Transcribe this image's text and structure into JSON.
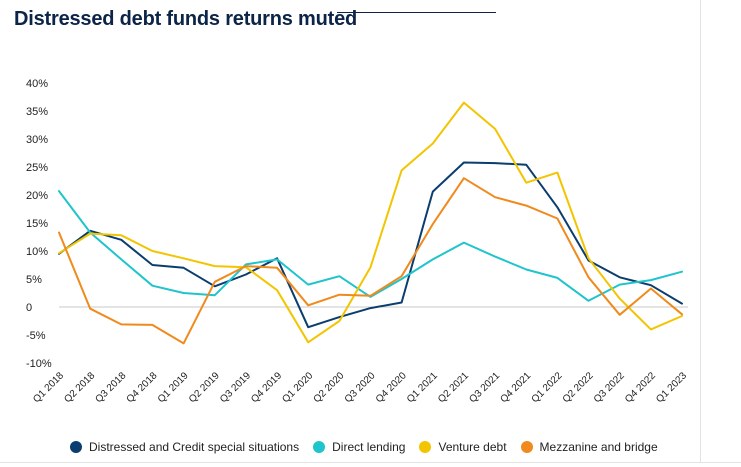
{
  "title": "Distressed debt funds returns muted",
  "chart_data": {
    "type": "line",
    "title": "Distressed debt funds returns muted",
    "xlabel": "",
    "ylabel": "",
    "ylim": [
      -10,
      40
    ],
    "yticks": [
      40,
      35,
      30,
      25,
      20,
      15,
      10,
      5,
      0,
      -5,
      -10
    ],
    "ytick_labels": [
      "40%",
      "35%",
      "30%",
      "25%",
      "20%",
      "15%",
      "10%",
      "5%",
      "0",
      "-5%",
      "-10%"
    ],
    "categories": [
      "Q1 2018",
      "Q2 2018",
      "Q3 2018",
      "Q4 2018",
      "Q1 2019",
      "Q2 2019",
      "Q3 2019",
      "Q4 2019",
      "Q1 2020",
      "Q2 2020",
      "Q3 2020",
      "Q4 2020",
      "Q1 2021",
      "Q2 2021",
      "Q3 2021",
      "Q4 2021",
      "Q1 2022",
      "Q2 2022",
      "Q3 2022",
      "Q4 2022",
      "Q1 2023"
    ],
    "series": [
      {
        "name": "Distressed and Credit special situations",
        "color": "#0b3d6e",
        "values": [
          9.5,
          13.6,
          12.0,
          7.5,
          7.0,
          3.7,
          5.8,
          8.7,
          -3.6,
          -1.8,
          -0.2,
          0.8,
          20.6,
          25.8,
          25.7,
          25.4,
          17.8,
          8.3,
          5.3,
          3.9,
          0.6
        ]
      },
      {
        "name": "Direct lending",
        "color": "#1fc4cc",
        "values": [
          20.7,
          13.3,
          8.5,
          3.8,
          2.5,
          2.1,
          7.6,
          8.5,
          4.0,
          5.5,
          1.8,
          5.0,
          8.5,
          11.5,
          9.0,
          6.7,
          5.2,
          1.1,
          4.0,
          4.8,
          6.3
        ]
      },
      {
        "name": "Venture debt",
        "color": "#f2c500",
        "values": [
          9.6,
          13.1,
          12.8,
          10.0,
          8.7,
          7.3,
          7.1,
          3.0,
          -6.3,
          -2.5,
          7.1,
          24.4,
          29.2,
          36.5,
          31.8,
          22.2,
          24.0,
          8.7,
          1.5,
          -4.0,
          -1.6
        ]
      },
      {
        "name": "Mezzanine and bridge",
        "color": "#f08a1c",
        "values": [
          13.3,
          -0.3,
          -3.1,
          -3.2,
          -6.5,
          4.5,
          7.3,
          7.0,
          0.3,
          2.2,
          2.0,
          5.5,
          14.8,
          23.0,
          19.6,
          18.1,
          15.8,
          5.3,
          -1.4,
          3.3,
          -1.3
        ]
      }
    ],
    "legend_position": "bottom"
  }
}
